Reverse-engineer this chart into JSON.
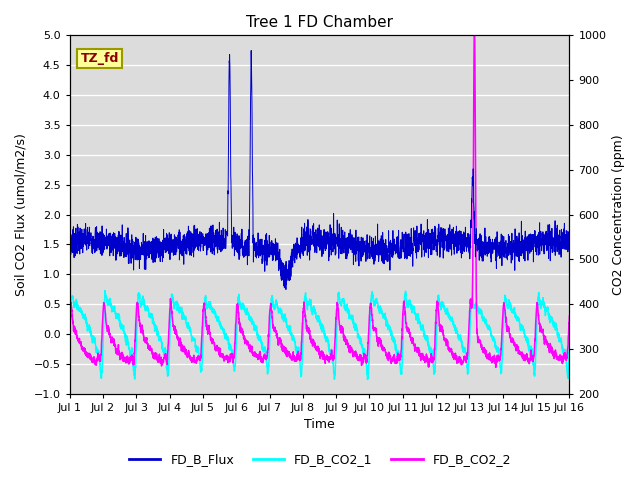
{
  "title": "Tree 1 FD Chamber",
  "xlabel": "Time",
  "ylabel_left": "Soil CO2 Flux (umol/m2/s)",
  "ylabel_right": "CO2 Concentration (ppm)",
  "ylim_left": [
    -1.0,
    5.0
  ],
  "ylim_right": [
    200,
    1000
  ],
  "xlim": [
    0,
    15
  ],
  "xtick_labels": [
    "Jul 1",
    "Jul 2",
    "Jul 3",
    "Jul 4",
    "Jul 5",
    "Jul 6",
    "Jul 7",
    "Jul 8",
    "Jul 9",
    "Jul 10",
    "Jul 11",
    "Jul 12",
    "Jul 13",
    "Jul 14",
    "Jul 15",
    "Jul 16"
  ],
  "annotation_text": "TZ_fd",
  "annotation_color": "#8B0000",
  "annotation_bg": "#FFFF99",
  "annotation_edge": "#999900",
  "flux_color": "#0000CC",
  "co2_1_color": "#00FFFF",
  "co2_2_color": "#FF00FF",
  "background_color": "#DCDCDC",
  "grid_color": "#FFFFFF",
  "legend_labels": [
    "FD_B_Flux",
    "FD_B_CO2_1",
    "FD_B_CO2_2"
  ],
  "n_points": 3000,
  "seed": 7
}
